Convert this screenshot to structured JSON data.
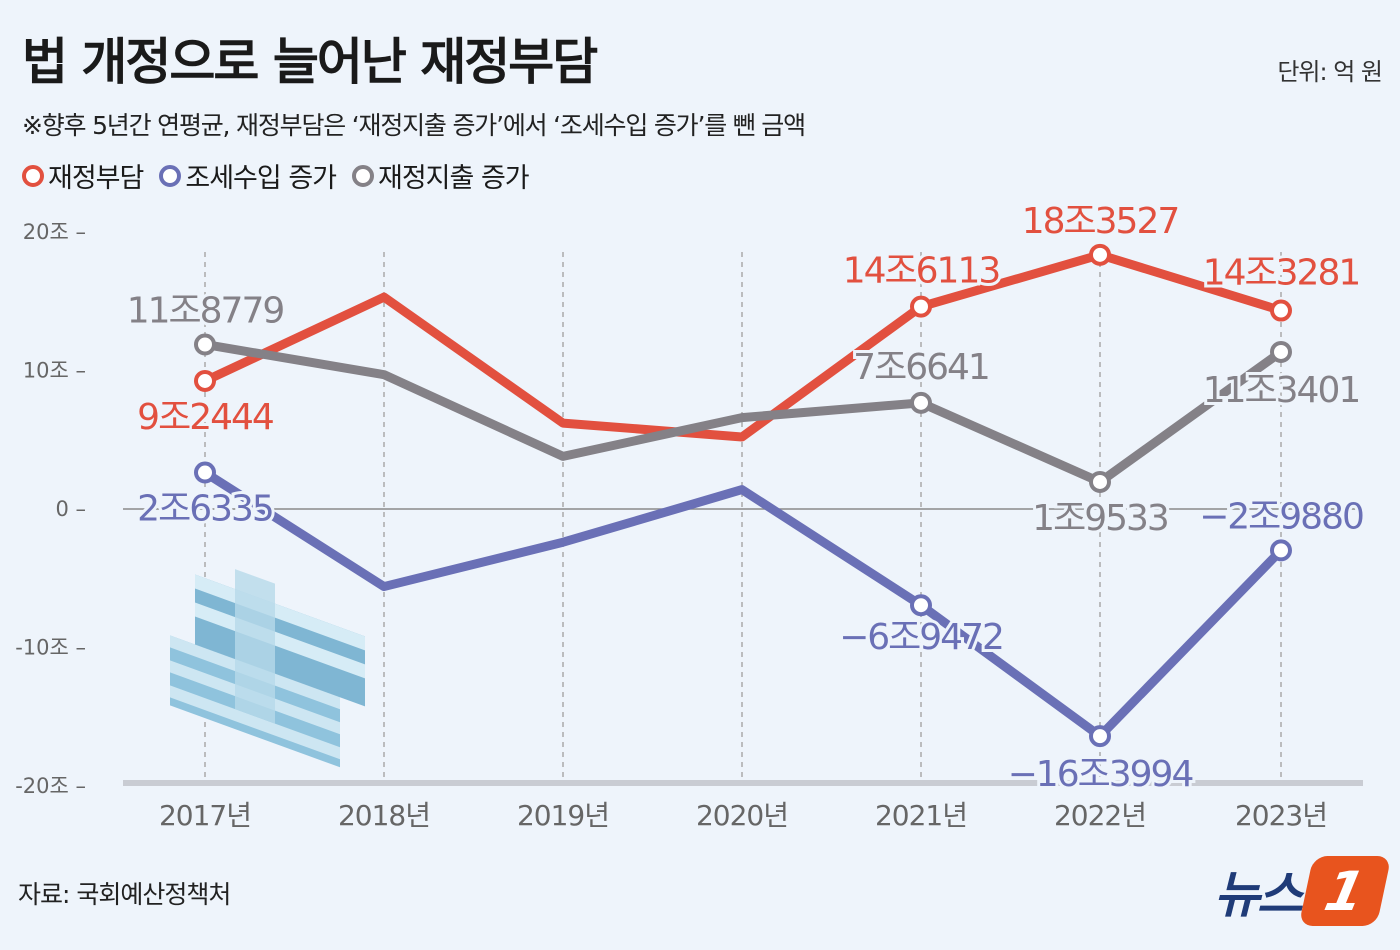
{
  "header": {
    "title": "법 개정으로 늘어난 재정부담",
    "unit": "단위: 억 원",
    "subtitle": "※향후 5년간 연평균, 재정부담은 ‘재정지출 증가’에서 ‘조세수입 증가’를 뺀 금액"
  },
  "footer": {
    "source": "자료: 국회예산정책처",
    "logo": "뉴스1",
    "logo_text": "뉴스",
    "logo_badge": "1"
  },
  "chart_data": {
    "type": "line",
    "title": "법 개정으로 늘어난 재정부담",
    "unit": "억 원",
    "categories": [
      "2017년",
      "2018년",
      "2019년",
      "2020년",
      "2021년",
      "2022년",
      "2023년"
    ],
    "ylim": [
      -200000,
      200000
    ],
    "yticks": [
      {
        "value": 200000,
        "label": "20조"
      },
      {
        "value": 100000,
        "label": "10조"
      },
      {
        "value": 0,
        "label": "0"
      },
      {
        "value": -100000,
        "label": "-10조"
      },
      {
        "value": -200000,
        "label": "-20조"
      }
    ],
    "grid": "vertical dashed lines at categories, zero line",
    "legend": "top-left",
    "series": [
      {
        "name": "재정부담",
        "color": "#e2503f",
        "values": [
          92444,
          153000,
          62000,
          52000,
          146113,
          183527,
          143281
        ],
        "labels": [
          "9조2444",
          null,
          null,
          null,
          "14조6113",
          "18조3527",
          "14조3281"
        ]
      },
      {
        "name": "조세수입 증가",
        "color": "#6a70b6",
        "values": [
          26335,
          -56000,
          -24000,
          14000,
          -69472,
          -163994,
          -29880
        ],
        "labels": [
          "2조6335",
          null,
          null,
          null,
          "−6조9472",
          "−16조3994",
          "−2조9880"
        ]
      },
      {
        "name": "재정지출 증가",
        "color": "#848187",
        "values": [
          118779,
          97000,
          38000,
          66000,
          76641,
          19533,
          113401
        ],
        "labels": [
          "11조8779",
          null,
          null,
          null,
          "7조6641",
          "1조9533",
          "11조3401"
        ]
      }
    ]
  }
}
